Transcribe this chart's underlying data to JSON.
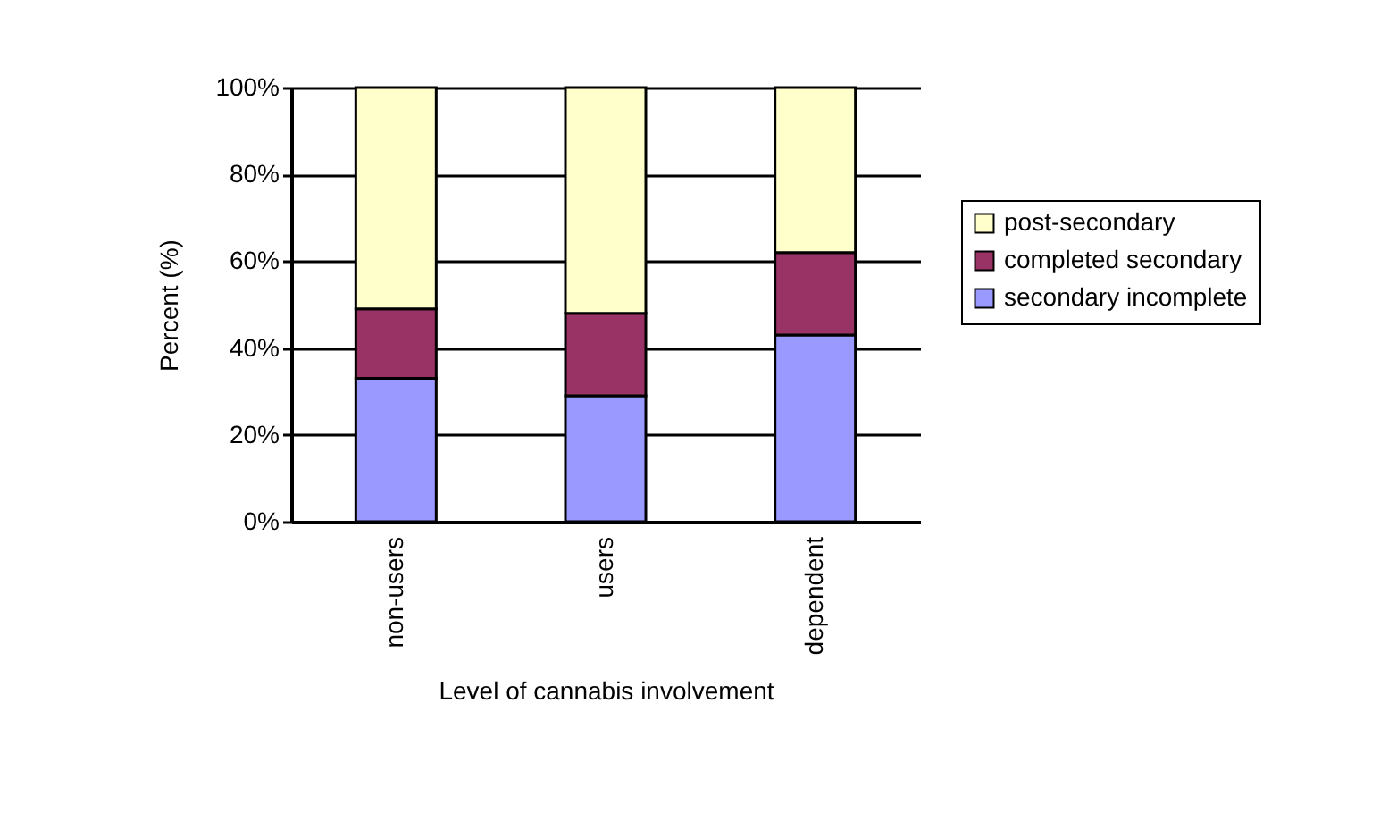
{
  "chart_data": {
    "type": "bar",
    "stacked": true,
    "xlabel": "Level of cannabis involvement",
    "ylabel": "Percent (%)",
    "categories": [
      "non-users",
      "users",
      "dependent"
    ],
    "series": [
      {
        "name": "secondary incomplete",
        "color": "#9999ff",
        "values": [
          33,
          29,
          43
        ]
      },
      {
        "name": "completed secondary",
        "color": "#993366",
        "values": [
          16,
          19,
          19
        ]
      },
      {
        "name": "post-secondary",
        "color": "#ffffcc",
        "values": [
          51,
          52,
          38
        ]
      }
    ],
    "ylim": [
      0,
      100
    ],
    "yticks": [
      {
        "value": 0,
        "label": "0%"
      },
      {
        "value": 20,
        "label": "20%"
      },
      {
        "value": 40,
        "label": "40%"
      },
      {
        "value": 60,
        "label": "60%"
      },
      {
        "value": 80,
        "label": "80%"
      },
      {
        "value": 100,
        "label": "100%"
      }
    ],
    "grid": "y",
    "legend": "right"
  }
}
